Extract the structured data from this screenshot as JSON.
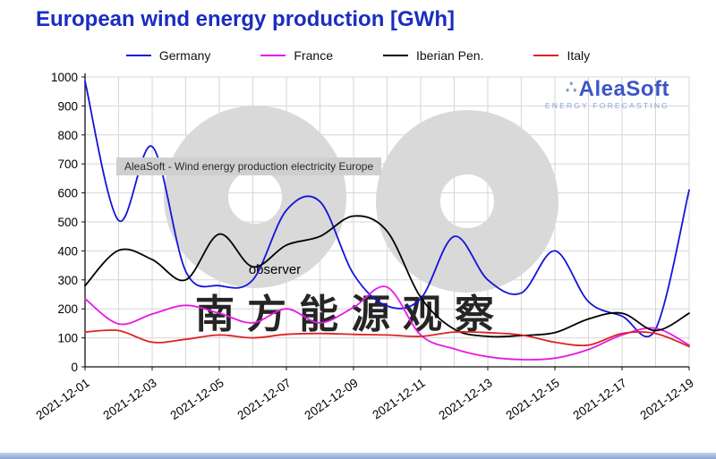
{
  "title": "European wind energy production [GWh]",
  "colors": {
    "title": "#1b2cc1",
    "logo_name": "#3d55c4",
    "logo_subtitle": "#8ba4d8",
    "grid": "#d6d6d6",
    "axis": "#111111",
    "watermark_gray": "#d9d9d9"
  },
  "annotation": "AleaSoft - Wind energy production electricity Europe",
  "logo": {
    "mark": "∴",
    "name": "AleaSoft",
    "subtitle": "ENERGY FORECASTING"
  },
  "watermark": {
    "text_cn": "南方能源观察",
    "text_latin": "observer"
  },
  "chart_data": {
    "type": "line",
    "title": "European wind energy production [GWh]",
    "xlabel": "",
    "ylabel": "",
    "ylim": [
      0,
      1000
    ],
    "ytick_step": 100,
    "xtick_step": 2,
    "grid": true,
    "legend_position": "top",
    "x": [
      "2021-12-01",
      "2021-12-02",
      "2021-12-03",
      "2021-12-04",
      "2021-12-05",
      "2021-12-06",
      "2021-12-07",
      "2021-12-08",
      "2021-12-09",
      "2021-12-10",
      "2021-12-11",
      "2021-12-12",
      "2021-12-13",
      "2021-12-14",
      "2021-12-15",
      "2021-12-16",
      "2021-12-17",
      "2021-12-18",
      "2021-12-19"
    ],
    "series": [
      {
        "name": "Germany",
        "color": "#1414dd",
        "values": [
          985,
          505,
          760,
          330,
          280,
          300,
          540,
          570,
          320,
          210,
          235,
          450,
          300,
          255,
          400,
          225,
          175,
          130,
          610
        ]
      },
      {
        "name": "France",
        "color": "#e619e6",
        "values": [
          235,
          148,
          182,
          212,
          185,
          152,
          200,
          152,
          205,
          275,
          110,
          62,
          35,
          25,
          30,
          60,
          110,
          133,
          75
        ]
      },
      {
        "name": "Iberian Pen.",
        "color": "#000000",
        "values": [
          280,
          402,
          370,
          300,
          458,
          345,
          420,
          450,
          520,
          468,
          240,
          130,
          105,
          108,
          118,
          165,
          185,
          125,
          185
        ]
      },
      {
        "name": "Italy",
        "color": "#dd2222",
        "values": [
          120,
          125,
          85,
          95,
          110,
          100,
          112,
          115,
          112,
          110,
          105,
          120,
          118,
          110,
          85,
          75,
          115,
          115,
          70
        ]
      }
    ]
  }
}
